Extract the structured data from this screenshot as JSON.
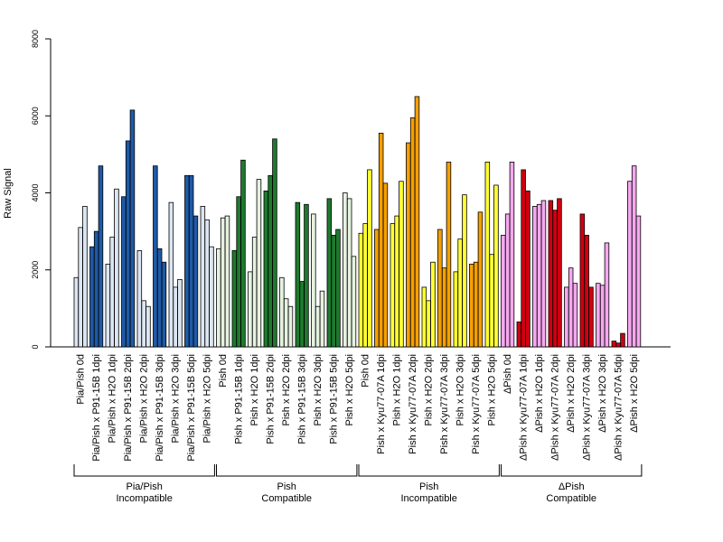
{
  "chart_data": {
    "type": "bar",
    "title": "",
    "ylabel": "Raw Signal",
    "ylim": [
      0,
      8000
    ],
    "yticks": [
      0,
      2000,
      4000,
      6000,
      8000
    ],
    "bars_per_category": 3,
    "categories": [
      "Pia/Pish 0d",
      "Pia/Pish x P91-15B 1dpi",
      "Pia/Pish x H2O 1dpi",
      "Pia/Pish x P91-15B 2dpi",
      "Pia/Pish x H2O 2dpi",
      "Pia/Pish x P91-15B 3dpi",
      "Pia/Pish x H2O 3dpi",
      "Pia/Pish x P91-15B 5dpi",
      "Pia/Pish x H2O 5dpi",
      "Pish 0d",
      "Pish x P91-15B 1dpi",
      "Pish x H2O 1dpi",
      "Pish x P91-15B 2dpi",
      "Pish x H2O 2dpi",
      "Pish x P91-15B 3dpi",
      "Pish x H2O 3dpi",
      "Pish x P91-15B 5dpi",
      "Pish x H2O 5dpi",
      "Pish 0d",
      "Pish x Kyu77-07A 1dpi",
      "Pish x H2O 1dpi",
      "Pish x Kyu77-07A 2dpi",
      "Pish x H2O 2dpi",
      "Pish x Kyu77-07A 3dpi",
      "Pish x H2O 3dpi",
      "Pish x Kyu77-07A 5dpi",
      "Pish x H2O 5dpi",
      "ΔPish 0d",
      "ΔPish x Kyu77-07A 1dpi",
      "ΔPish x H2O 1dpi",
      "ΔPish x Kyu77-07A 2dpi",
      "ΔPish x H2O 2dpi",
      "ΔPish x Kyu77-07A 3dpi",
      "ΔPish x H2O 3dpi",
      "ΔPish x Kyu77-07A 5dpi",
      "ΔPish x H2O 5dpi"
    ],
    "groups": [
      {
        "line1": "Pia/Pish",
        "line2": "Incompatible",
        "start": 0,
        "end": 8,
        "colors": {
          "control": "#dce6f2",
          "treated": "#1f5aa6"
        }
      },
      {
        "line1": "Pish",
        "line2": "Compatible",
        "start": 9,
        "end": 17,
        "colors": {
          "control": "#e6f2e0",
          "treated": "#1e7a2e"
        }
      },
      {
        "line1": "Pish",
        "line2": "Incompatible",
        "start": 18,
        "end": 26,
        "colors": {
          "control": "#ffff33",
          "treated": "#f5a000"
        }
      },
      {
        "line1": "ΔPish",
        "line2": "Compatible",
        "start": 27,
        "end": 35,
        "colors": {
          "control": "#f5a8ef",
          "treated": "#d00010"
        }
      }
    ],
    "values": [
      [
        1800,
        3100,
        3650
      ],
      [
        2600,
        3000,
        4700
      ],
      [
        2150,
        2850,
        4100
      ],
      [
        3900,
        5350,
        6150
      ],
      [
        2500,
        1200,
        1050
      ],
      [
        4700,
        2550,
        2200
      ],
      [
        3750,
        1550,
        1750
      ],
      [
        4450,
        4450,
        3400
      ],
      [
        3650,
        3300,
        2600
      ],
      [
        2550,
        3350,
        3400
      ],
      [
        2500,
        3900,
        4850
      ],
      [
        1950,
        2850,
        4350
      ],
      [
        4050,
        4450,
        5400
      ],
      [
        1800,
        1250,
        1050
      ],
      [
        3750,
        1700,
        3700
      ],
      [
        3450,
        1050,
        1450
      ],
      [
        3850,
        2900,
        3050
      ],
      [
        4000,
        3850,
        2350
      ],
      [
        2950,
        3200,
        4600
      ],
      [
        3050,
        5550,
        4250
      ],
      [
        3200,
        3400,
        4300
      ],
      [
        5300,
        5950,
        6500
      ],
      [
        1550,
        1200,
        2200
      ],
      [
        3050,
        2050,
        4800
      ],
      [
        1950,
        2800,
        3950
      ],
      [
        2150,
        2200,
        3500
      ],
      [
        4800,
        2400,
        4200
      ],
      [
        2900,
        3450,
        4800
      ],
      [
        650,
        4600,
        4050
      ],
      [
        3650,
        3700,
        3800
      ],
      [
        3800,
        3550,
        3850
      ],
      [
        1550,
        2050,
        1650
      ],
      [
        3450,
        2900,
        1550
      ],
      [
        1650,
        1600,
        2700
      ],
      [
        150,
        100,
        350
      ],
      [
        4300,
        4700,
        3400
      ]
    ]
  }
}
